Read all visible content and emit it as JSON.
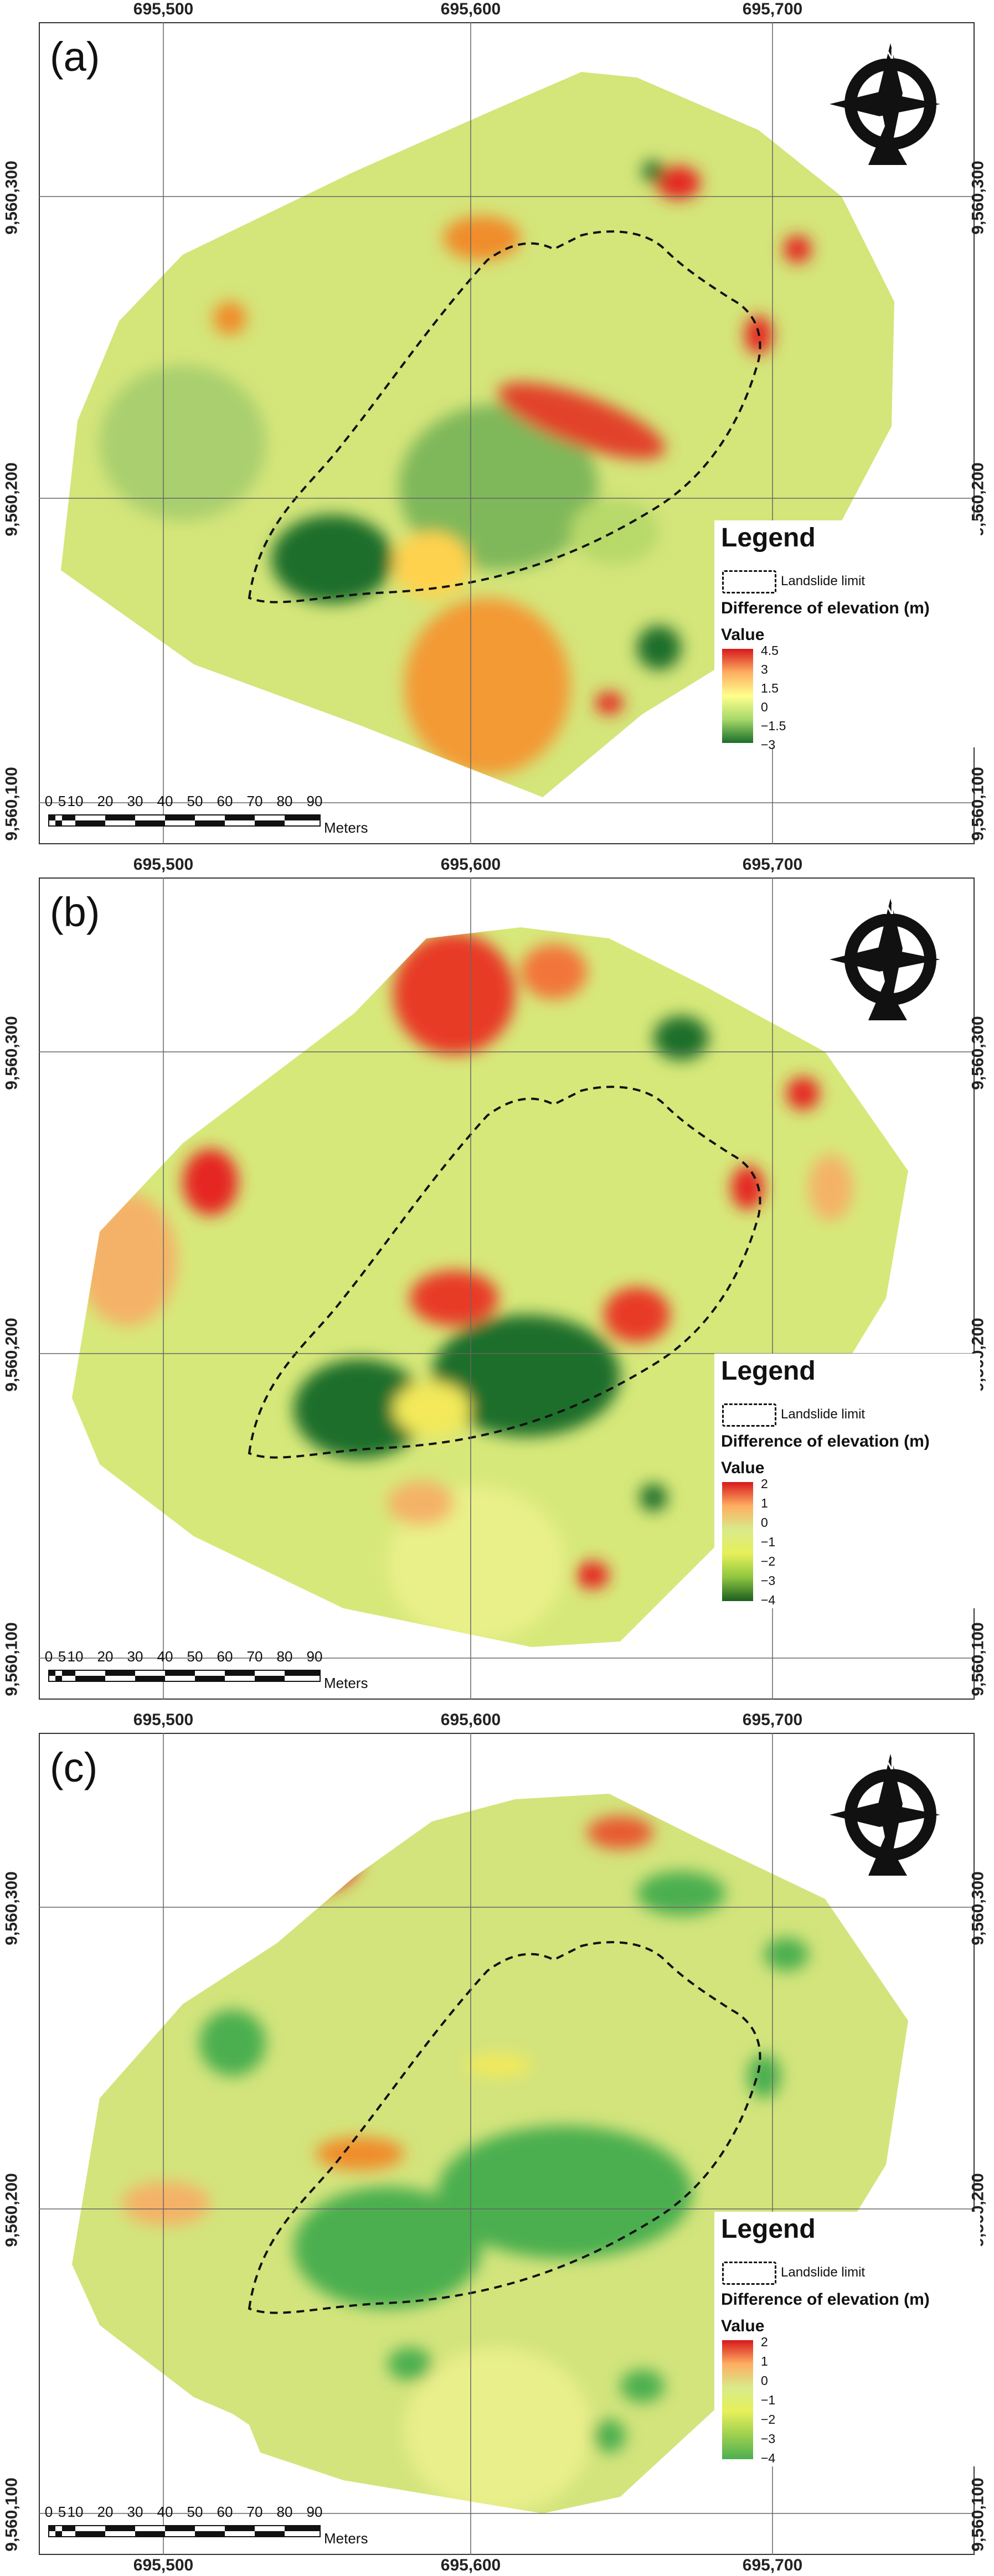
{
  "x_tick_labels": [
    "695,500",
    "695,600",
    "695,700"
  ],
  "y_tick_labels": [
    "9,560,300",
    "9,560,200",
    "9,560,100"
  ],
  "scale_bar": {
    "labels": [
      "0",
      "5",
      "10",
      "20",
      "30",
      "40",
      "50",
      "60",
      "70",
      "80",
      "90"
    ],
    "unit": "Meters"
  },
  "legend": {
    "title": "Legend",
    "limit_label": "Landslide limit",
    "field_label": "Difference of elevation (m)",
    "value_label": "Value"
  },
  "panels": [
    {
      "letter": "(a)",
      "ticks": [
        "4.5",
        "3",
        "1.5",
        "0",
        "−1.5",
        "−3"
      ],
      "ramp_colors": [
        "#d7191c",
        "#fdae61",
        "#ffff8c",
        "#a6d96a",
        "#1a6e2a"
      ],
      "base_color": "#d4e57a"
    },
    {
      "letter": "(b)",
      "ticks": [
        "2",
        "1",
        "0",
        "−1",
        "−2",
        "−3",
        "−4"
      ],
      "ramp_colors": [
        "#d7191c",
        "#fdae61",
        "#d9ea8a",
        "#e6f05a",
        "#8fc63f",
        "#1b5e20"
      ],
      "base_color": "#d7e87a"
    },
    {
      "letter": "(c)",
      "ticks": [
        "2",
        "1",
        "0",
        "−1",
        "−2",
        "−3",
        "−4"
      ],
      "ramp_colors": [
        "#d7191c",
        "#fdae61",
        "#d9ea8a",
        "#e6f05a",
        "#9ccf4f",
        "#4caf50"
      ],
      "base_color": "#d3e47c"
    }
  ]
}
